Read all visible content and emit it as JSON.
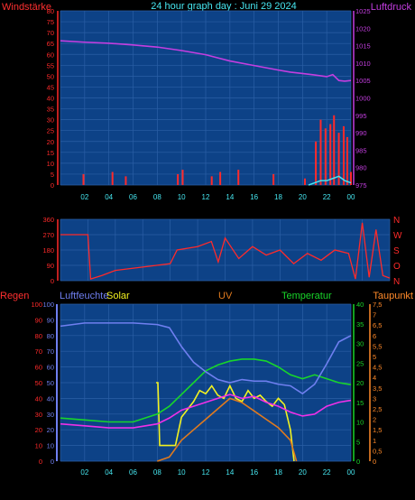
{
  "header": {
    "left_label": "Windstärke",
    "title": "24 hour graph day : Juni 29 2024",
    "right_label": "Luftdruck"
  },
  "compass": [
    "N",
    "W",
    "S",
    "O",
    "N"
  ],
  "bottom_labels": {
    "regen": "Regen",
    "luftfeuchte": "Luftfeuchte",
    "solar": "Solar",
    "uv": "UV",
    "temperatur": "Temperatur",
    "taupunkt": "Taupunkt"
  },
  "colors": {
    "plot_bg": "#0d4287",
    "grid": "#2b5fa6",
    "wind_red": "#ff2a2a",
    "gust_cyan": "#46e6f0",
    "pressure": "#c43ee0",
    "humidity": "#6f7ff0",
    "solar": "#f2f220",
    "uv": "#e07a1e",
    "temperature": "#18d62a",
    "dewpoint": "#f030e8"
  },
  "chart_data": [
    {
      "type": "line",
      "name": "wind-pressure",
      "x_ticks": [
        "02",
        "04",
        "06",
        "08",
        "10",
        "12",
        "14",
        "16",
        "18",
        "20",
        "22",
        "00"
      ],
      "left_axis": {
        "label": "Windstärke",
        "range": [
          0,
          80
        ],
        "ticks": [
          0,
          5,
          10,
          15,
          20,
          25,
          30,
          35,
          40,
          45,
          50,
          55,
          60,
          65,
          70,
          75,
          80
        ]
      },
      "right_axis": {
        "label": "Luftdruck",
        "range": [
          975,
          1025
        ],
        "ticks": [
          975,
          980,
          985,
          990,
          995,
          1000,
          1005,
          1010,
          1015,
          1020,
          1025
        ]
      },
      "series": [
        {
          "unit": "hPa",
          "hours": [
            0,
            2,
            4,
            6,
            8,
            10,
            12,
            13,
            14,
            16,
            18,
            19,
            20,
            21,
            22,
            22.5,
            23,
            23.5,
            24
          ],
          "values": [
            1016.4,
            1016,
            1015.7,
            1015.2,
            1014.6,
            1013.6,
            1012.4,
            1011.5,
            1010.6,
            1009.3,
            1008,
            1007.4,
            1007,
            1006.6,
            1006.1,
            1006.7,
            1005,
            1004.8,
            1005
          ]
        },
        {
          "unit": "wind",
          "hours": [
            1.9,
            4.3,
            5.4,
            9.7,
            10.1,
            12.5,
            13.2,
            14.7,
            17.6,
            20.2,
            21.1,
            21.5,
            21.9,
            22.3,
            22.6,
            23,
            23.4,
            23.7,
            24
          ],
          "values": [
            5,
            6,
            4,
            5,
            7,
            4,
            6,
            7,
            5,
            3,
            20,
            30,
            26,
            28,
            32,
            24,
            27,
            22,
            6
          ]
        },
        {
          "unit": "gust",
          "hours": [
            20.5,
            21,
            21.5,
            22,
            22.5,
            23,
            23.5,
            24
          ],
          "values": [
            0,
            1,
            2,
            2,
            3,
            4,
            2,
            1
          ]
        }
      ]
    },
    {
      "type": "scatter",
      "name": "wind-direction",
      "y_axis": {
        "range": [
          0,
          360
        ],
        "ticks": [
          0,
          90,
          180,
          270,
          360
        ]
      },
      "series": [
        {
          "unit": "deg",
          "hours": [
            0,
            2,
            2.2,
            3,
            4,
            6,
            8,
            8.5,
            10,
            11,
            11.5,
            12,
            13,
            14,
            15,
            16,
            17,
            18,
            19,
            20,
            21,
            21.5,
            22,
            22.5,
            23,
            23.5,
            24
          ],
          "values": [
            270,
            270,
            10,
            30,
            60,
            80,
            100,
            180,
            200,
            230,
            110,
            250,
            130,
            200,
            150,
            180,
            100,
            160,
            120,
            180,
            160,
            10,
            340,
            20,
            300,
            30,
            15
          ]
        }
      ]
    },
    {
      "type": "line",
      "name": "climate",
      "left_axis": {
        "label": "Regen",
        "range": [
          0,
          100
        ],
        "ticks": [
          0,
          10,
          20,
          30,
          40,
          50,
          60,
          70,
          80,
          90,
          100
        ]
      },
      "right_axis_temp": {
        "label": "Temperatur",
        "range": [
          0,
          40
        ],
        "ticks": [
          0,
          5,
          10,
          15,
          20,
          25,
          30,
          35,
          40
        ]
      },
      "right_axis_dew": {
        "label": "Taupunkt",
        "range": [
          0,
          7.5
        ],
        "ticks": [
          0,
          0.5,
          1,
          1.5,
          2,
          2.5,
          3,
          3.5,
          4,
          4.5,
          5,
          5.5,
          6,
          6.5,
          7,
          7.5
        ]
      },
      "series": [
        {
          "unit": "%",
          "hours": [
            0,
            2,
            4,
            6,
            8,
            9,
            10,
            11,
            12,
            13,
            14,
            15,
            16,
            17,
            18,
            19,
            20,
            21,
            22,
            23,
            24
          ],
          "values": [
            86,
            88,
            88,
            88,
            87,
            85,
            73,
            63,
            57,
            52,
            50,
            52,
            51,
            51,
            49,
            48,
            43,
            49,
            62,
            76,
            80
          ]
        },
        {
          "unit": "°C",
          "hours": [
            0,
            2,
            4,
            6,
            8,
            9,
            10,
            11,
            12,
            13,
            14,
            15,
            16,
            17,
            18,
            19,
            20,
            21,
            22,
            23,
            24
          ],
          "values": [
            11,
            10.5,
            10,
            10,
            12,
            14,
            17,
            20,
            23,
            24.5,
            25.5,
            26,
            26,
            25.5,
            24,
            22,
            21,
            22,
            21,
            20,
            19.5
          ]
        },
        {
          "unit": "dew",
          "hours": [
            0,
            2,
            4,
            6,
            8,
            9,
            10,
            11,
            12,
            13,
            14,
            15,
            16,
            17,
            18,
            19,
            20,
            21,
            22,
            23,
            24
          ],
          "values": [
            9.5,
            9,
            8.5,
            8.5,
            9.5,
            11,
            13,
            14,
            15,
            16,
            17,
            16,
            16.5,
            15,
            14,
            12.5,
            11.5,
            12,
            14,
            15,
            15.5
          ]
        },
        {
          "unit": "W/m²",
          "hours": [
            7.9,
            8.05,
            8.2,
            9.5,
            10,
            10.5,
            11,
            11.5,
            12,
            12.5,
            13,
            13.5,
            14,
            14.5,
            15,
            15.5,
            16,
            16.5,
            17,
            17.5,
            18,
            18.5,
            19,
            19.3
          ],
          "values": [
            50,
            50,
            10,
            10,
            28,
            33,
            38,
            45,
            43,
            48,
            42,
            40,
            48,
            40,
            38,
            45,
            40,
            42,
            38,
            35,
            40,
            36,
            20,
            0
          ]
        },
        {
          "unit": "UV",
          "hours": [
            8,
            9,
            10,
            11,
            12,
            13,
            14,
            15,
            16,
            17,
            18,
            19,
            19.5
          ],
          "values": [
            0,
            0.2,
            1,
            1.5,
            2,
            2.5,
            3,
            2.8,
            2.4,
            2,
            1.6,
            1,
            0
          ]
        }
      ]
    }
  ]
}
